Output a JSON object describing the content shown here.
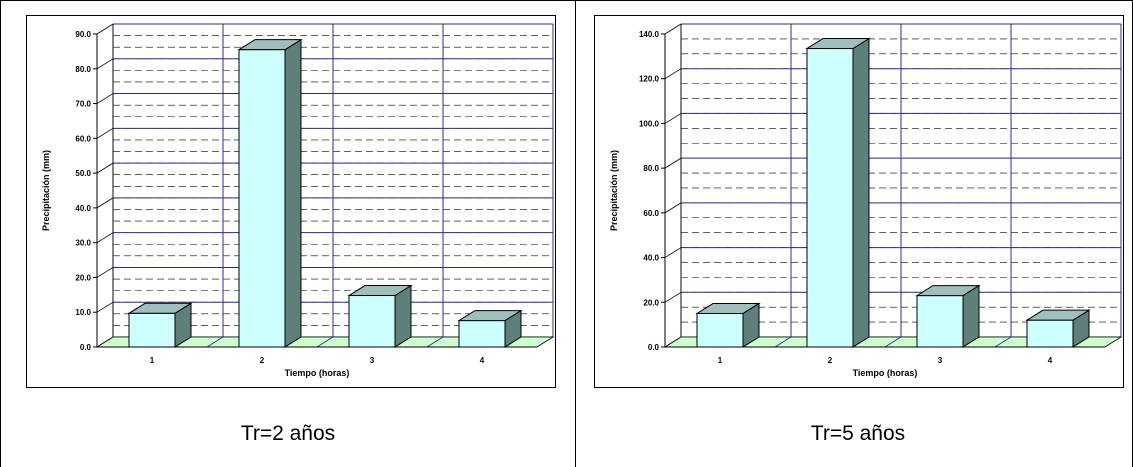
{
  "colors": {
    "bar_front": "#ccffff",
    "bar_top": "#9fbfbb",
    "bar_side": "#5f7f7b",
    "floor": "#ccffcc",
    "grid_major": "#2c2c94",
    "grid_minor": "#000000"
  },
  "chart_data": [
    {
      "type": "bar",
      "categories": [
        "1",
        "2",
        "3",
        "4"
      ],
      "values": [
        9.7,
        85.5,
        14.8,
        7.6
      ],
      "xlabel": "Tiempo (horas)",
      "ylabel": "Precipitación (mm)",
      "ylim": [
        0,
        90
      ],
      "ytick_step": 10,
      "ytick_labels": [
        "0.0",
        "10.0",
        "20.0",
        "30.0",
        "40.0",
        "50.0",
        "60.0",
        "70.0",
        "80.0",
        "90.0"
      ],
      "grid": true,
      "caption": "Tr=2 años"
    },
    {
      "type": "bar",
      "categories": [
        "1",
        "2",
        "3",
        "4"
      ],
      "values": [
        15.0,
        133.5,
        23.0,
        12.0
      ],
      "xlabel": "Tiempo (horas)",
      "ylabel": "Precipitación (mm)",
      "ylim": [
        0,
        140
      ],
      "ytick_step": 20,
      "ytick_labels": [
        "0.0",
        "20.0",
        "40.0",
        "60.0",
        "80.0",
        "100.0",
        "120.0",
        "140.0"
      ],
      "grid": true,
      "caption": "Tr=5 años"
    }
  ]
}
